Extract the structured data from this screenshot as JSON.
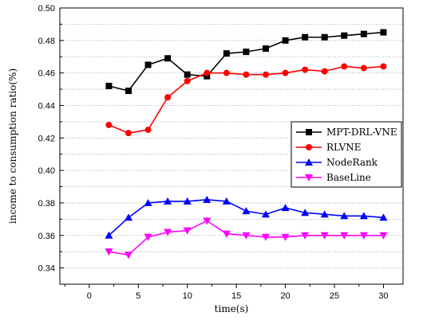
{
  "chart_data": {
    "type": "line",
    "xlabel": "time(s)",
    "ylabel": "income to consumption ratio(%)",
    "xlim": [
      -3,
      32
    ],
    "ylim": [
      0.33,
      0.5
    ],
    "xticks": [
      0,
      5,
      10,
      15,
      20,
      25,
      30
    ],
    "yticks": [
      0.34,
      0.36,
      0.38,
      0.4,
      0.42,
      0.44,
      0.46,
      0.48,
      0.5
    ],
    "ytick_labels": [
      "0.34",
      "0.36",
      "0.38",
      "0.40",
      "0.42",
      "0.44",
      "0.46",
      "0.48",
      "0.50"
    ],
    "grid": "horizontal-dotted",
    "legend_position": "right",
    "x": [
      2,
      4,
      6,
      8,
      10,
      12,
      14,
      16,
      18,
      20,
      22,
      24,
      26,
      28,
      30
    ],
    "series": [
      {
        "name": "MPT-DRL-VNE",
        "color": "#000000",
        "marker": "square",
        "values": [
          0.452,
          0.449,
          0.465,
          0.469,
          0.459,
          0.458,
          0.472,
          0.473,
          0.475,
          0.48,
          0.482,
          0.482,
          0.483,
          0.484,
          0.485
        ]
      },
      {
        "name": "RLVNE",
        "color": "#ff0000",
        "marker": "circle",
        "values": [
          0.428,
          0.423,
          0.425,
          0.445,
          0.455,
          0.46,
          0.46,
          0.459,
          0.459,
          0.46,
          0.462,
          0.461,
          0.464,
          0.463,
          0.464
        ]
      },
      {
        "name": "NodeRank",
        "color": "#0000ff",
        "marker": "triangle-up",
        "values": [
          0.36,
          0.371,
          0.38,
          0.381,
          0.381,
          0.382,
          0.381,
          0.375,
          0.373,
          0.377,
          0.374,
          0.373,
          0.372,
          0.372,
          0.371
        ]
      },
      {
        "name": "BaseLine",
        "color": "#ff00ff",
        "marker": "triangle-down",
        "values": [
          0.35,
          0.348,
          0.359,
          0.362,
          0.363,
          0.369,
          0.361,
          0.36,
          0.359,
          0.359,
          0.36,
          0.36,
          0.36,
          0.36,
          0.36
        ]
      }
    ]
  }
}
